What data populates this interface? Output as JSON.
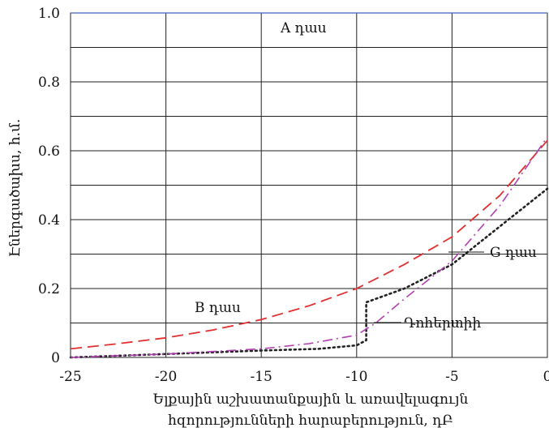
{
  "chart_data": {
    "type": "line",
    "xlabel_lines": [
      "Ելքային աշխատանքային և առավելագույն",
      "հզորությունների հարաբերություն, դԲ"
    ],
    "ylabel": "Էներգածախս, հ.մ.",
    "xlim": [
      -25,
      0
    ],
    "ylim": [
      0,
      1.0
    ],
    "x_ticks": [
      -25,
      -20,
      -15,
      -10,
      -5,
      0
    ],
    "y_ticks": [
      0,
      0.2,
      0.4,
      0.6,
      0.8,
      1.0
    ],
    "y_tick_labels": [
      "0",
      "0.2",
      "0.4",
      "0.6",
      "0.8",
      "1.0"
    ],
    "grid": true,
    "series": [
      {
        "name": "A դաս",
        "color": "#4060c0",
        "style": "solid",
        "x": [
          -25,
          0
        ],
        "y": [
          1.0,
          1.0
        ]
      },
      {
        "name": "B դաս",
        "color": "#e03030",
        "style": "dashed",
        "x": [
          -25,
          -22.5,
          -20,
          -17.5,
          -15,
          -12.5,
          -10,
          -7.5,
          -5,
          -2.5,
          0
        ],
        "y": [
          0.025,
          0.04,
          0.057,
          0.08,
          0.11,
          0.15,
          0.2,
          0.27,
          0.35,
          0.47,
          0.63
        ]
      },
      {
        "name": "G դաս",
        "color": "#222222",
        "style": "dotted",
        "x": [
          -25,
          -20,
          -15,
          -12,
          -10,
          -9.5,
          -9.5,
          -7.5,
          -5,
          -2.5,
          0
        ],
        "y": [
          0.0,
          0.01,
          0.02,
          0.025,
          0.035,
          0.05,
          0.16,
          0.2,
          0.27,
          0.38,
          0.49
        ]
      },
      {
        "name": "Դոհերտիի",
        "color": "#b040b0",
        "style": "dashdot",
        "x": [
          -25,
          -20,
          -15,
          -12.5,
          -10,
          -9,
          -7.5,
          -5,
          -2.5,
          0
        ],
        "y": [
          0.0,
          0.01,
          0.025,
          0.04,
          0.065,
          0.1,
          0.17,
          0.28,
          0.44,
          0.64
        ]
      }
    ],
    "annotations": [
      "A դաս",
      "B դաս",
      "G դաս",
      "Դոհերտիի"
    ]
  }
}
